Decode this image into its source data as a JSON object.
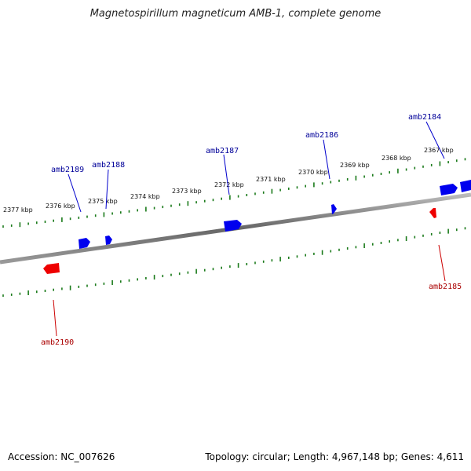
{
  "title": "Magnetospirillum magneticum AMB-1, complete genome",
  "footer": {
    "accession": "Accession: NC_007626",
    "summary": "Topology: circular; Length: 4,967,148 bp; Genes: 4,611"
  },
  "colors": {
    "plus_strand": "#0000ee",
    "minus_strand": "#ee0000",
    "ruler": "#1a7a1a",
    "backbone": "#777777"
  },
  "kbp_labels": [
    "2377 kbp",
    "2376 kbp",
    "2375 kbp",
    "2374 kbp",
    "2373 kbp",
    "2372 kbp",
    "2371 kbp",
    "2370 kbp",
    "2369 kbp",
    "2368 kbp",
    "2367 kbp"
  ],
  "genes": [
    {
      "id": "amb2184",
      "strand": "plus"
    },
    {
      "id": "amb2185",
      "strand": "minus"
    },
    {
      "id": "amb2186",
      "strand": "plus"
    },
    {
      "id": "amb2187",
      "strand": "plus"
    },
    {
      "id": "amb2188",
      "strand": "plus"
    },
    {
      "id": "amb2189",
      "strand": "plus"
    },
    {
      "id": "amb2190",
      "strand": "minus"
    }
  ]
}
